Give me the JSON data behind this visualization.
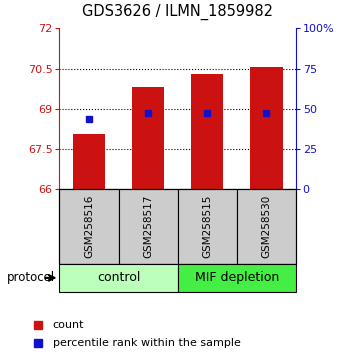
{
  "title": "GDS3626 / ILMN_1859982",
  "samples": [
    "GSM258516",
    "GSM258517",
    "GSM258515",
    "GSM258530"
  ],
  "bar_bottoms": [
    66.0,
    66.0,
    66.0,
    66.0
  ],
  "bar_tops": [
    68.05,
    69.83,
    70.28,
    70.55
  ],
  "blue_values": [
    68.63,
    68.83,
    68.83,
    68.83
  ],
  "ylim_left": [
    66,
    72
  ],
  "ylim_right": [
    0,
    100
  ],
  "yticks_left": [
    66,
    67.5,
    69,
    70.5,
    72
  ],
  "yticks_right": [
    0,
    25,
    50,
    75,
    100
  ],
  "ytick_labels_left": [
    "66",
    "67.5",
    "69",
    "70.5",
    "72"
  ],
  "ytick_labels_right": [
    "0",
    "25",
    "50",
    "75",
    "100%"
  ],
  "bar_color": "#CC1111",
  "blue_color": "#1111CC",
  "bar_width": 0.55,
  "groups": [
    {
      "label": "control",
      "indices": [
        0,
        1
      ],
      "color": "#bbffbb"
    },
    {
      "label": "MIF depletion",
      "indices": [
        2,
        3
      ],
      "color": "#44ee44"
    }
  ],
  "protocol_label": "protocol",
  "legend_count_label": "count",
  "legend_percentile_label": "percentile rank within the sample",
  "sample_box_color": "#cccccc",
  "grid_yticks": [
    67.5,
    69,
    70.5
  ]
}
